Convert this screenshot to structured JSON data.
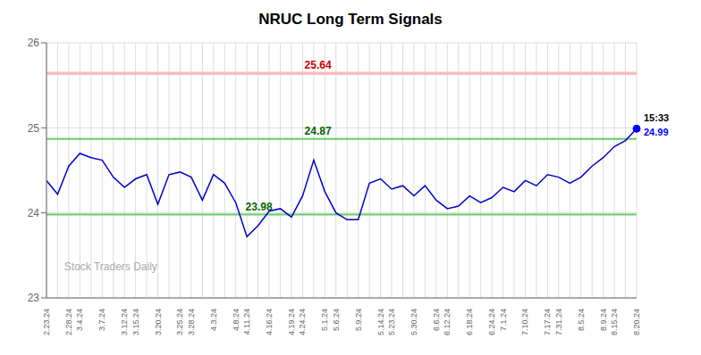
{
  "chart_data": {
    "type": "line",
    "title": "NRUC Long Term Signals",
    "categories": [
      "2.23.24",
      null,
      "2.28.24",
      "3.4.24",
      null,
      "3.7.24",
      null,
      "3.12.24",
      "3.15.24",
      null,
      "3.20.24",
      null,
      "3.25.24",
      "3.28.24",
      null,
      "4.3.24",
      null,
      "4.8.24",
      "4.11.24",
      null,
      "4.16.24",
      null,
      "4.19.24",
      "4.24.24",
      null,
      "5.1.24",
      "5.6.24",
      null,
      "5.9.24",
      null,
      "5.14.24",
      "5.23.24",
      null,
      "5.30.24",
      null,
      "6.6.24",
      "6.12.24",
      null,
      "6.18.24",
      null,
      "6.24.24",
      "7.1.24",
      null,
      "7.10.24",
      null,
      "7.17.24",
      "7.31.24",
      null,
      "8.5.24",
      null,
      "8.9.24",
      "8.15.24",
      null,
      "8.20.24"
    ],
    "values": [
      24.38,
      24.22,
      24.55,
      24.7,
      24.65,
      24.62,
      24.42,
      24.3,
      24.4,
      24.45,
      24.1,
      24.45,
      24.48,
      24.42,
      24.15,
      24.45,
      24.35,
      24.12,
      23.72,
      23.85,
      24.02,
      24.05,
      23.95,
      24.2,
      24.62,
      24.25,
      24.0,
      23.92,
      23.92,
      24.35,
      24.4,
      24.28,
      24.32,
      24.2,
      24.32,
      24.15,
      24.05,
      24.08,
      24.2,
      24.12,
      24.18,
      24.3,
      24.25,
      24.38,
      24.32,
      24.45,
      24.42,
      24.35,
      24.42,
      24.55,
      24.65,
      24.78,
      24.85,
      24.99
    ],
    "color": "#0000cc",
    "ylim": [
      23.0,
      26.0
    ],
    "yticks": [
      23,
      24,
      25,
      26
    ],
    "grid": true,
    "annotations": [
      {
        "type": "hline",
        "y": 25.64,
        "text": "25.64",
        "color": "#ffbbbb",
        "label_color": "#cc0000"
      },
      {
        "type": "hline",
        "y": 24.87,
        "text": "24.87",
        "color": "#66cc66",
        "label_color": "#006600"
      },
      {
        "type": "hline",
        "y": 23.98,
        "text": "23.98",
        "color": "#66cc66",
        "label_color": "#006600"
      },
      {
        "type": "last_point",
        "text": "15:33",
        "value": 24.99,
        "color": "#0000ff"
      },
      {
        "type": "watermark",
        "text": "Stock Traders Daily",
        "color": "#aaaaaa"
      }
    ]
  }
}
